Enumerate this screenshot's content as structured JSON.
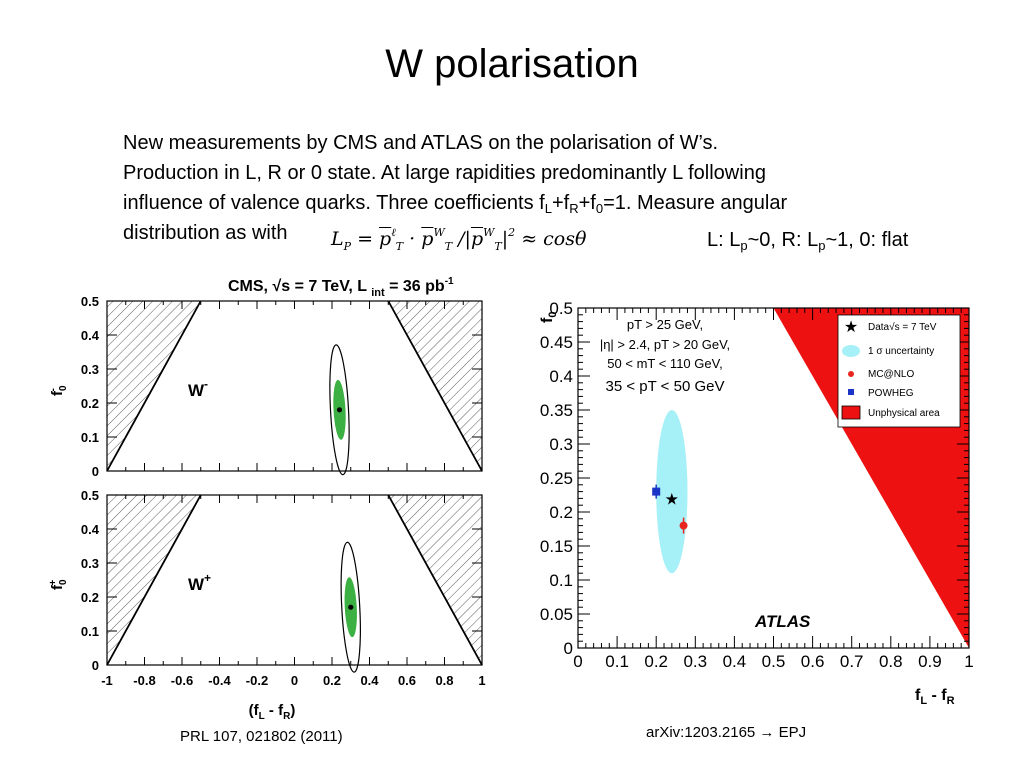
{
  "slide": {
    "title": "W polarisation",
    "para": {
      "line1": "New measurements by CMS and ATLAS on the polarisation of W’s.",
      "line2": "Production in L, R or 0 state. At large rapidities predominantly L following",
      "line3": {
        "pre": "influence of valence quarks. Three coefficients f",
        "s1": "L",
        "plus1": "+f",
        "s2": "R",
        "plus2": "+f",
        "s3": "0",
        "post": "=1. Measure angular"
      },
      "line4": "distribution as with"
    },
    "formula": {
      "lhs": "L",
      "lhs_sub": "P",
      "eq": " = ",
      "p": "p",
      "sup1": "ℓ",
      "sub1": "T",
      "dot": " · ",
      "p2": "p",
      "sup2": "W",
      "sub2": "T",
      "div": " /|",
      "p3": "p",
      "sup3": "W",
      "sub3": "T",
      "end": "|",
      "pow": "2",
      "approx": " ≈ cosθ"
    },
    "limits": {
      "a": "L: L",
      "as": "p",
      "b": "~0, R: L",
      "bs": "p",
      "c": "~1, 0: flat"
    },
    "cap_left": "PRL 107, 021802 (2011)",
    "cap_right": "arXiv:1203.2165 → EPJ"
  },
  "colors": {
    "accent_green": "#3cb043",
    "unphysical_red": "#ee1111",
    "ellipse_cyan": "#a6f0f7",
    "mc_red": "#e8261f",
    "powheg_blue": "#1a34c8"
  },
  "chart_data": [
    {
      "type": "scatter",
      "title": "CMS, √s = 7 TeV, L int = 36 pb-1",
      "panel": "W-",
      "ylabel": "f0-",
      "xlabel": "(fL - fR)",
      "xlim": [
        -1,
        1
      ],
      "ylim": [
        0,
        0.5
      ],
      "yticks": [
        "0",
        "0.1",
        "0.2",
        "0.3",
        "0.4",
        "0.5"
      ],
      "xticks": [
        "-1",
        "-0.8",
        "-0.6",
        "-0.4",
        "-0.2",
        "0",
        "0.2",
        "0.4",
        "0.6",
        "0.8",
        "1"
      ],
      "point": {
        "x": 0.24,
        "y": 0.18
      },
      "unphysical_hatched": true
    },
    {
      "type": "scatter",
      "panel": "W+",
      "ylabel": "f0+",
      "xlabel": "(fL - fR)",
      "xlim": [
        -1,
        1
      ],
      "ylim": [
        0,
        0.5
      ],
      "point": {
        "x": 0.3,
        "y": 0.17
      },
      "unphysical_hatched": true
    },
    {
      "type": "scatter",
      "ylabel": "f0",
      "xlabel": "fL - fR",
      "xlim": [
        0,
        1
      ],
      "ylim": [
        0,
        0.5
      ],
      "xticks": [
        "0",
        "0.1",
        "0.2",
        "0.3",
        "0.4",
        "0.5",
        "0.6",
        "0.7",
        "0.8",
        "0.9",
        "1"
      ],
      "yticks": [
        "0",
        "0.05",
        "0.1",
        "0.15",
        "0.2",
        "0.25",
        "0.3",
        "0.35",
        "0.4",
        "0.45",
        "0.5"
      ],
      "cuts": [
        "pT > 25 GeV,",
        "|η| > 2.4, pT > 20 GeV,",
        "50 < mT < 110 GeV,",
        "35 < pT < 50 GeV"
      ],
      "series": [
        {
          "name": "Data√s = 7 TeV",
          "x": 0.24,
          "y": 0.22
        },
        {
          "name": "1 σ uncertainty",
          "center": [
            0.24,
            0.23
          ],
          "half_widths": [
            0.04,
            0.12
          ]
        },
        {
          "name": "MC@NLO",
          "x": 0.27,
          "y": 0.18
        },
        {
          "name": "POWHEG",
          "x": 0.2,
          "y": 0.23
        }
      ],
      "legend_unphysical": "Unphysical area",
      "brand": "ATLAS",
      "legend_position": "top-right"
    }
  ]
}
